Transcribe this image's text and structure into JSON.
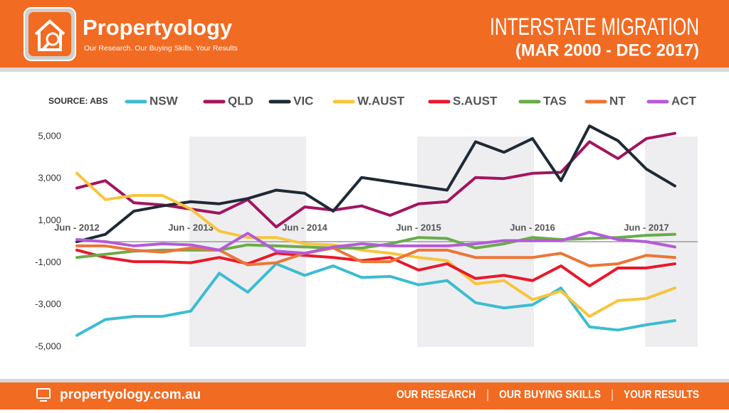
{
  "header": {
    "brand": "Propertyology",
    "tagline": "Our Research. Our Buying Skills. Your Results",
    "title": "INTERSTATE MIGRATION",
    "subtitle": "(MAR 2000 - DEC 2017)"
  },
  "footer": {
    "website": "propertyology.com.au",
    "links": [
      "OUR RESEARCH",
      "OUR BUYING SKILLS",
      "YOUR RESULTS"
    ]
  },
  "chart_data": {
    "type": "line",
    "source": "SOURCE: ABS",
    "categories": [
      "Jun - 2012",
      null,
      null,
      null,
      "Jun - 2013",
      null,
      null,
      null,
      "Jun - 2014",
      null,
      null,
      null,
      "Jun - 2015",
      null,
      null,
      null,
      "Jun - 2016",
      null,
      null,
      null,
      "Jun - 2017",
      null
    ],
    "series": [
      {
        "name": "NSW",
        "color": "#3dbcd0",
        "values": [
          -4450,
          -3700,
          -3550,
          -3550,
          -3300,
          -1500,
          -2400,
          -1050,
          -1600,
          -1150,
          -1700,
          -1650,
          -2050,
          -1850,
          -2900,
          -3150,
          -3000,
          -2200,
          -4050,
          -4200,
          -3950,
          -3750
        ]
      },
      {
        "name": "QLD",
        "color": "#a3145f",
        "values": [
          2550,
          2900,
          1850,
          1750,
          1550,
          1350,
          2000,
          700,
          1650,
          1500,
          1700,
          1250,
          1800,
          1900,
          3050,
          3000,
          3250,
          3300,
          4750,
          3950,
          4900,
          5150
        ]
      },
      {
        "name": "VIC",
        "color": "#1e2a36",
        "values": [
          0,
          350,
          1450,
          1700,
          1900,
          1800,
          2050,
          2450,
          2300,
          1450,
          3050,
          2850,
          2650,
          2450,
          4750,
          4250,
          4900,
          2900,
          5500,
          4800,
          3450,
          2650
        ]
      },
      {
        "name": "W.AUST",
        "color": "#f8c53a",
        "values": [
          3250,
          2000,
          2200,
          2200,
          1550,
          500,
          200,
          200,
          -100,
          -150,
          -400,
          -550,
          -750,
          -900,
          -2000,
          -1850,
          -2750,
          -2350,
          -3550,
          -2800,
          -2700,
          -2200
        ]
      },
      {
        "name": "S.AUST",
        "color": "#e8192c",
        "values": [
          -400,
          -750,
          -950,
          -950,
          -1000,
          -750,
          -1050,
          -550,
          -650,
          -750,
          -900,
          -750,
          -1350,
          -1050,
          -1750,
          -1600,
          -1850,
          -1150,
          -2100,
          -1250,
          -1250,
          -1050
        ]
      },
      {
        "name": "TAS",
        "color": "#6aab4a",
        "values": [
          -750,
          -600,
          -450,
          -400,
          -400,
          -400,
          -150,
          -200,
          -250,
          -300,
          -300,
          -100,
          200,
          150,
          -300,
          -100,
          200,
          100,
          150,
          200,
          300,
          350
        ]
      },
      {
        "name": "NT",
        "color": "#ee7535",
        "values": [
          -200,
          -200,
          -400,
          -500,
          -300,
          -400,
          -1100,
          -1000,
          -550,
          -300,
          -950,
          -950,
          -400,
          -400,
          -750,
          -750,
          -750,
          -550,
          -1150,
          -1050,
          -650,
          -750
        ]
      },
      {
        "name": "ACT",
        "color": "#b45bd9",
        "values": [
          100,
          0,
          -200,
          -100,
          -150,
          -400,
          400,
          -450,
          -550,
          -250,
          -100,
          -200,
          -200,
          -200,
          -100,
          50,
          50,
          50,
          450,
          100,
          0,
          -250
        ]
      }
    ],
    "ylim": [
      -5000,
      5000
    ],
    "yticks": [
      {
        "value": -5000,
        "label": "-5,000"
      },
      {
        "value": -3000,
        "label": "-3,000"
      },
      {
        "value": -1000,
        "label": "-1,000"
      },
      {
        "value": 1000,
        "label": "1,000"
      },
      {
        "value": 3000,
        "label": "3,000"
      },
      {
        "value": 5000,
        "label": "5,000"
      }
    ],
    "grid": false
  }
}
